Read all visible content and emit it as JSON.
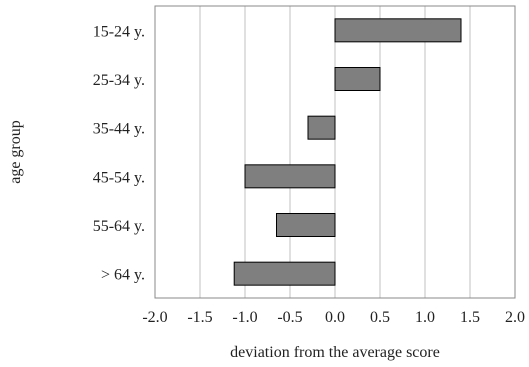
{
  "chart_data": {
    "type": "bar",
    "orientation": "horizontal",
    "categories": [
      "15-24 y.",
      "25-34 y.",
      "35-44 y.",
      "45-54 y.",
      "55-64 y.",
      "> 64 y."
    ],
    "values": [
      1.4,
      0.5,
      -0.3,
      -1.0,
      -0.65,
      -1.12
    ],
    "xlabel": "deviation from the average score",
    "ylabel": "age group",
    "xlim": [
      -2.0,
      2.0
    ],
    "xticks": [
      "-2.0",
      "-1.5",
      "-1.0",
      "-0.5",
      "0.0",
      "0.5",
      "1.0",
      "1.5",
      "2.0"
    ],
    "grid": "vertical",
    "legend": "none",
    "bar_color": "#7f7f7f",
    "bar_edge_color": "#000000",
    "grid_color": "#c0c0c0"
  }
}
